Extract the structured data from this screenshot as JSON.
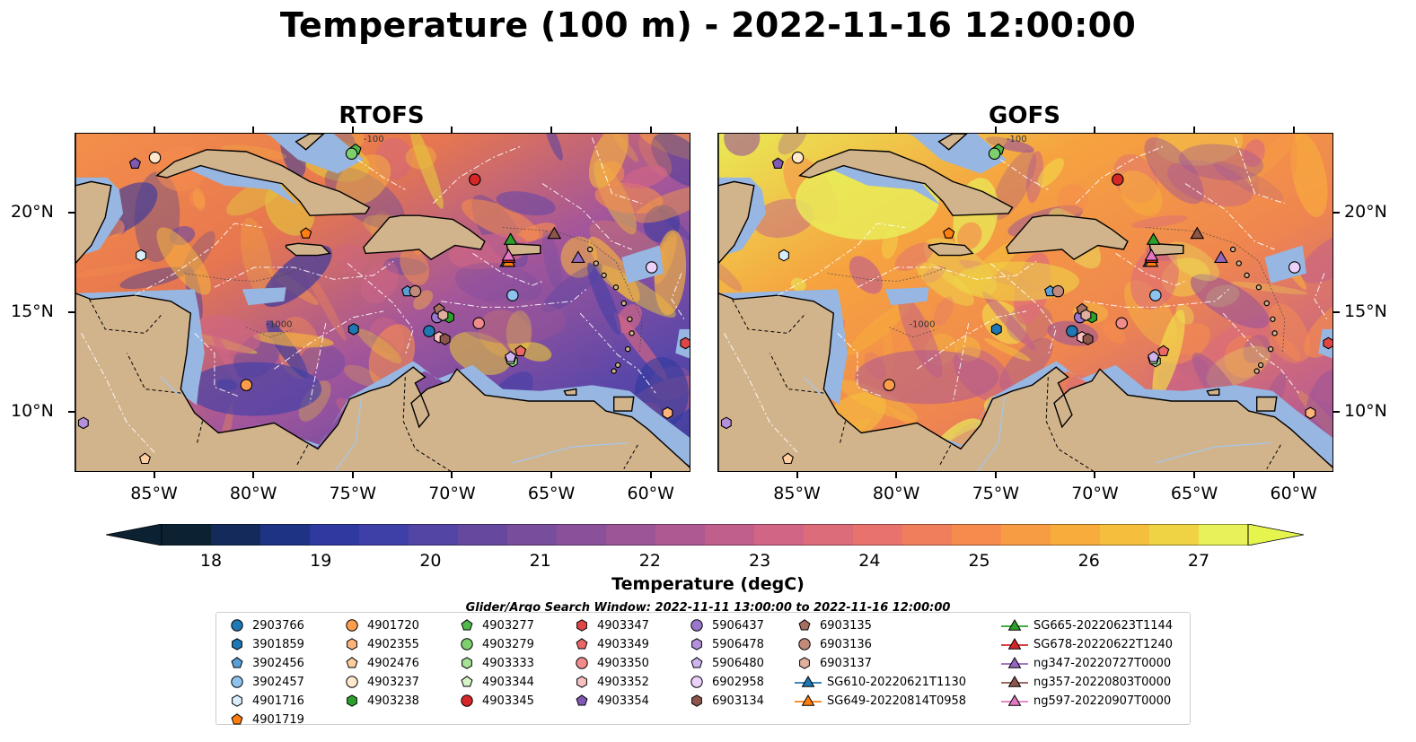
{
  "title": "Temperature (100 m) - 2022-11-16 12:00:00",
  "panels": [
    {
      "title": "RTOFS",
      "model": "rtofs"
    },
    {
      "title": "GOFS",
      "model": "gofs"
    }
  ],
  "map": {
    "extent": {
      "lon": [
        -89,
        -58
      ],
      "lat": [
        7,
        24
      ]
    },
    "lon_ticks": [
      -85,
      -80,
      -75,
      -70,
      -65,
      -60
    ],
    "lon_tick_labels": [
      "85°W",
      "80°W",
      "75°W",
      "70°W",
      "65°W",
      "60°W"
    ],
    "lat_ticks": [
      10,
      15,
      20
    ],
    "lat_tick_labels": [
      "10°N",
      "15°N",
      "20°N"
    ],
    "land_color": "#d2b48c",
    "shallow_color": "#97b6e1",
    "deep_color": "#0b2233",
    "contour_labels": [
      "-100",
      "-1000"
    ]
  },
  "colorbar": {
    "label": "Temperature (degC)",
    "min": 18,
    "max": 27,
    "step": 0.5,
    "ticks": [
      "18",
      "19",
      "20",
      "21",
      "22",
      "23",
      "24",
      "25",
      "26",
      "27"
    ],
    "colors": [
      "#0c2233",
      "#142a5a",
      "#1f3384",
      "#2e3aa0",
      "#3f3fa8",
      "#5345a3",
      "#66499f",
      "#784e9c",
      "#8a519a",
      "#9c5597",
      "#ae5992",
      "#c05e8c",
      "#d06585",
      "#dd6c7a",
      "#e8736c",
      "#f07e5c",
      "#f58c4d",
      "#f79c43",
      "#f8ac3c",
      "#f5be3d",
      "#efd344",
      "#e8f05a"
    ],
    "extend_low_color": "#0c2233",
    "extend_high_color": "#e5f54e"
  },
  "search_window": "Glider/Argo Search Window: 2022-11-11 13:00:00 to 2022-11-16 12:00:00",
  "legend": [
    {
      "label": "2903766",
      "marker": "circle",
      "color": "#1f77b4"
    },
    {
      "label": "3901859",
      "marker": "hexagon",
      "color": "#1f77b4"
    },
    {
      "label": "3902456",
      "marker": "pentagon",
      "color": "#5aa0d8"
    },
    {
      "label": "3902457",
      "marker": "circle",
      "color": "#8ec3ee"
    },
    {
      "label": "4901716",
      "marker": "hexagon",
      "color": "#d8eefc"
    },
    {
      "label": "4901719",
      "marker": "pentagon",
      "color": "#ff7f0e"
    },
    {
      "label": "4901720",
      "marker": "circle",
      "color": "#ff9d4a"
    },
    {
      "label": "4902355",
      "marker": "hexagon",
      "color": "#ffb47a"
    },
    {
      "label": "4902476",
      "marker": "pentagon",
      "color": "#ffcd9e"
    },
    {
      "label": "4903237",
      "marker": "circle",
      "color": "#ffe8cc"
    },
    {
      "label": "4903238",
      "marker": "hexagon",
      "color": "#2ca02c"
    },
    {
      "label": "4903277",
      "marker": "pentagon",
      "color": "#4fb84a"
    },
    {
      "label": "4903279",
      "marker": "circle",
      "color": "#7ecf6e"
    },
    {
      "label": "4903333",
      "marker": "hexagon",
      "color": "#a6e196"
    },
    {
      "label": "4903344",
      "marker": "pentagon",
      "color": "#d6f5c7"
    },
    {
      "label": "4903345",
      "marker": "circle",
      "color": "#d62728"
    },
    {
      "label": "4903347",
      "marker": "hexagon",
      "color": "#e04646"
    },
    {
      "label": "4903349",
      "marker": "pentagon",
      "color": "#ec6767"
    },
    {
      "label": "4903350",
      "marker": "circle",
      "color": "#f28c8c"
    },
    {
      "label": "4903352",
      "marker": "hexagon",
      "color": "#f9c0c0"
    },
    {
      "label": "4903354",
      "marker": "pentagon",
      "color": "#8059b4"
    },
    {
      "label": "5906437",
      "marker": "circle",
      "color": "#9b76cf"
    },
    {
      "label": "5906478",
      "marker": "hexagon",
      "color": "#b590dd"
    },
    {
      "label": "5906480",
      "marker": "pentagon",
      "color": "#d0b4ef"
    },
    {
      "label": "6902958",
      "marker": "circle",
      "color": "#ecd2fb"
    },
    {
      "label": "6903134",
      "marker": "hexagon",
      "color": "#8c564b"
    },
    {
      "label": "6903135",
      "marker": "pentagon",
      "color": "#a66f62"
    },
    {
      "label": "6903136",
      "marker": "circle",
      "color": "#c28a7b"
    },
    {
      "label": "6903137",
      "marker": "hexagon",
      "color": "#e0b09f"
    },
    {
      "label": "SG610-20220621T1130",
      "marker": "triangle",
      "color": "#1f77b4"
    },
    {
      "label": "SG649-20220814T0958",
      "marker": "triangle",
      "color": "#ff7f0e"
    },
    {
      "label": "SG665-20220623T1144",
      "marker": "triangle",
      "color": "#2ca02c"
    },
    {
      "label": "SG678-20220622T1240",
      "marker": "triangle",
      "color": "#d62728"
    },
    {
      "label": "ng347-20220727T0000",
      "marker": "triangle",
      "color": "#9467bd"
    },
    {
      "label": "ng357-20220803T0000",
      "marker": "triangle",
      "color": "#8c564b"
    },
    {
      "label": "ng597-20220907T0000",
      "marker": "triangle",
      "color": "#e377c2"
    }
  ],
  "platforms": [
    {
      "id": "2903766",
      "lon": -71.2,
      "lat": 14.1
    },
    {
      "id": "3901859",
      "lon": -75.0,
      "lat": 14.2
    },
    {
      "id": "3902456",
      "lon": -72.3,
      "lat": 16.1
    },
    {
      "id": "3902457",
      "lon": -67.0,
      "lat": 15.9
    },
    {
      "id": "4901716",
      "lon": -85.7,
      "lat": 17.9
    },
    {
      "id": "4901719",
      "lon": -77.4,
      "lat": 19.0
    },
    {
      "id": "4901720",
      "lon": -80.4,
      "lat": 11.4
    },
    {
      "id": "4902355",
      "lon": -59.2,
      "lat": 10.0
    },
    {
      "id": "4902476",
      "lon": -85.5,
      "lat": 7.7
    },
    {
      "id": "4903237",
      "lon": -85.0,
      "lat": 22.8
    },
    {
      "id": "4903238",
      "lon": -70.2,
      "lat": 14.8
    },
    {
      "id": "4903277",
      "lon": -74.9,
      "lat": 23.2
    },
    {
      "id": "4903279",
      "lon": -75.1,
      "lat": 23.0
    },
    {
      "id": "4903333",
      "lon": -67.0,
      "lat": 12.6
    },
    {
      "id": "4903344",
      "lon": -67.1,
      "lat": 12.7
    },
    {
      "id": "4903345",
      "lon": -68.9,
      "lat": 21.7
    },
    {
      "id": "4903347",
      "lon": -58.3,
      "lat": 13.5
    },
    {
      "id": "4903349",
      "lon": -66.6,
      "lat": 13.1
    },
    {
      "id": "4903350",
      "lon": -68.7,
      "lat": 14.5
    },
    {
      "id": "4903352",
      "lon": -70.7,
      "lat": 13.8
    },
    {
      "id": "4903354",
      "lon": -86.0,
      "lat": 22.5
    },
    {
      "id": "5906437",
      "lon": -70.8,
      "lat": 14.8
    },
    {
      "id": "5906478",
      "lon": -88.6,
      "lat": 9.5
    },
    {
      "id": "5906480",
      "lon": -67.1,
      "lat": 12.8
    },
    {
      "id": "6902958",
      "lon": -60.0,
      "lat": 17.3
    },
    {
      "id": "6903134",
      "lon": -70.4,
      "lat": 13.7
    },
    {
      "id": "6903135",
      "lon": -70.7,
      "lat": 15.2
    },
    {
      "id": "6903136",
      "lon": -71.9,
      "lat": 16.1
    },
    {
      "id": "6903137",
      "lon": -70.5,
      "lat": 14.9
    },
    {
      "id": "SG610-20220621T1130",
      "lon": -67.3,
      "lat": 17.6
    },
    {
      "id": "SG649-20220814T0958",
      "lon": -67.2,
      "lat": 17.6
    },
    {
      "id": "SG665-20220623T1144",
      "lon": -67.1,
      "lat": 18.7
    },
    {
      "id": "SG678-20220622T1240",
      "lon": -67.2,
      "lat": 17.8
    },
    {
      "id": "ng347-20220727T0000",
      "lon": -63.7,
      "lat": 17.8
    },
    {
      "id": "ng357-20220803T0000",
      "lon": -64.9,
      "lat": 19.0
    },
    {
      "id": "ng597-20220907T0000",
      "lon": -67.2,
      "lat": 17.9
    }
  ]
}
